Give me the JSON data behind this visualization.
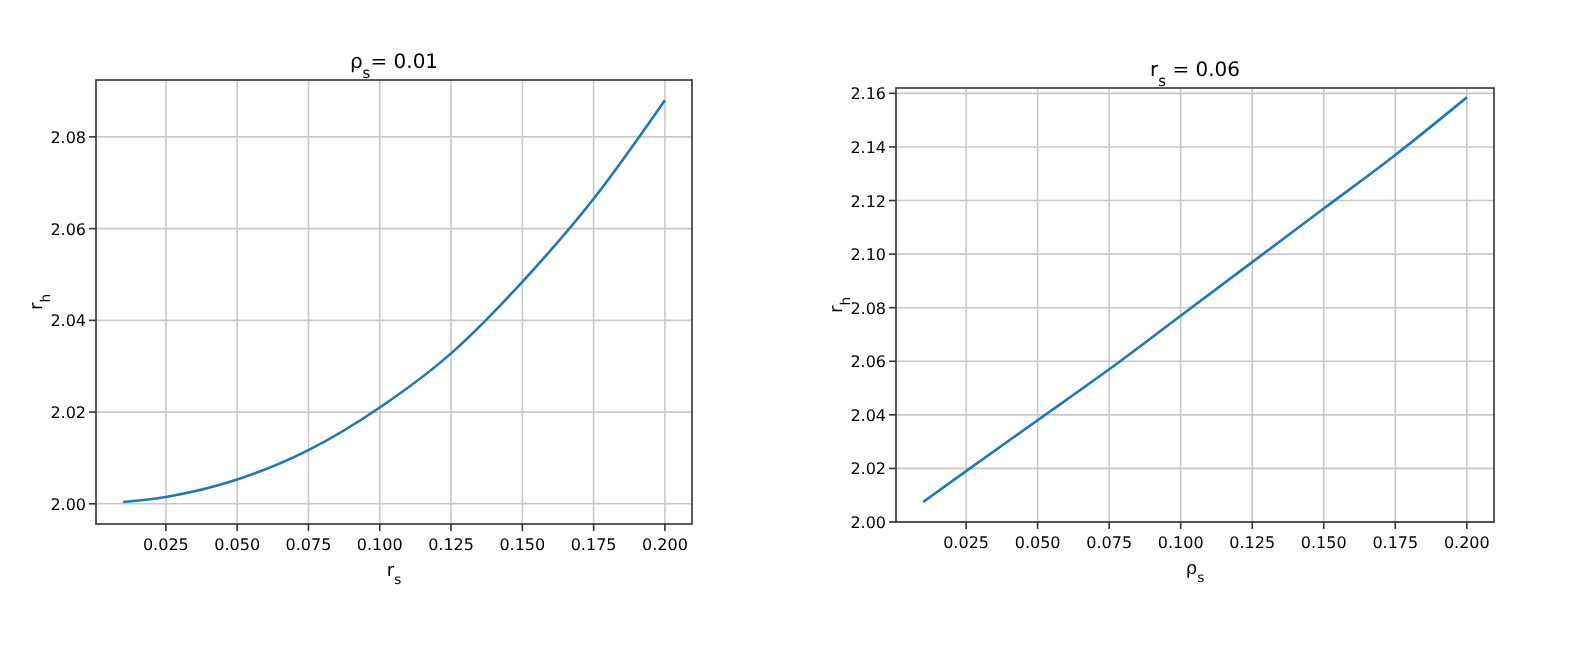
{
  "chart_data": [
    {
      "type": "line",
      "title": "ρ$_{s}$= 0.01",
      "xlabel": "r$_{s}$",
      "ylabel": "r$_{h}$",
      "x": [
        0.01,
        0.025,
        0.05,
        0.075,
        0.1,
        0.125,
        0.15,
        0.175,
        0.2
      ],
      "series": [
        {
          "color": "#1f77b4",
          "values": [
            2.0004,
            2.0015,
            2.0053,
            2.0117,
            2.021,
            2.0328,
            2.0484,
            2.0665,
            2.088
          ]
        }
      ],
      "xlim": [
        0.0005,
        0.2095
      ],
      "ylim": [
        1.9956,
        2.0924
      ],
      "xticks": [
        {
          "value": 0.025,
          "label": "0.025"
        },
        {
          "value": 0.05,
          "label": "0.050"
        },
        {
          "value": 0.075,
          "label": "0.075"
        },
        {
          "value": 0.1,
          "label": "0.100"
        },
        {
          "value": 0.125,
          "label": "0.125"
        },
        {
          "value": 0.15,
          "label": "0.150"
        },
        {
          "value": 0.175,
          "label": "0.175"
        },
        {
          "value": 0.2,
          "label": "0.200"
        }
      ],
      "yticks": [
        {
          "value": 2.0,
          "label": "2.00"
        },
        {
          "value": 2.02,
          "label": "2.02"
        },
        {
          "value": 2.04,
          "label": "2.04"
        },
        {
          "value": 2.06,
          "label": "2.06"
        },
        {
          "value": 2.08,
          "label": "2.08"
        }
      ],
      "grid": true
    },
    {
      "type": "line",
      "title": "r$_{s}$ = 0.06",
      "xlabel": "ρ$_{s}$",
      "ylabel": "r$_{h}$",
      "x": [
        0.01,
        0.025,
        0.05,
        0.075,
        0.1,
        0.125,
        0.15,
        0.175,
        0.2
      ],
      "series": [
        {
          "color": "#1f77b4",
          "values": [
            2.0075,
            2.019,
            2.038,
            2.057,
            2.077,
            2.097,
            2.117,
            2.137,
            2.1585
          ]
        }
      ],
      "xlim": [
        0.0005,
        0.2095
      ],
      "ylim": [
        2.0,
        2.162
      ],
      "xticks": [
        {
          "value": 0.025,
          "label": "0.025"
        },
        {
          "value": 0.05,
          "label": "0.050"
        },
        {
          "value": 0.075,
          "label": "0.075"
        },
        {
          "value": 0.1,
          "label": "0.100"
        },
        {
          "value": 0.125,
          "label": "0.125"
        },
        {
          "value": 0.15,
          "label": "0.150"
        },
        {
          "value": 0.175,
          "label": "0.175"
        },
        {
          "value": 0.2,
          "label": "0.200"
        }
      ],
      "yticks": [
        {
          "value": 2.0,
          "label": "2.00"
        },
        {
          "value": 2.02,
          "label": "2.02"
        },
        {
          "value": 2.04,
          "label": "2.04"
        },
        {
          "value": 2.06,
          "label": "2.06"
        },
        {
          "value": 2.08,
          "label": "2.08"
        },
        {
          "value": 2.1,
          "label": "2.10"
        },
        {
          "value": 2.12,
          "label": "2.12"
        },
        {
          "value": 2.14,
          "label": "2.14"
        },
        {
          "value": 2.16,
          "label": "2.16"
        }
      ],
      "grid": true
    }
  ]
}
